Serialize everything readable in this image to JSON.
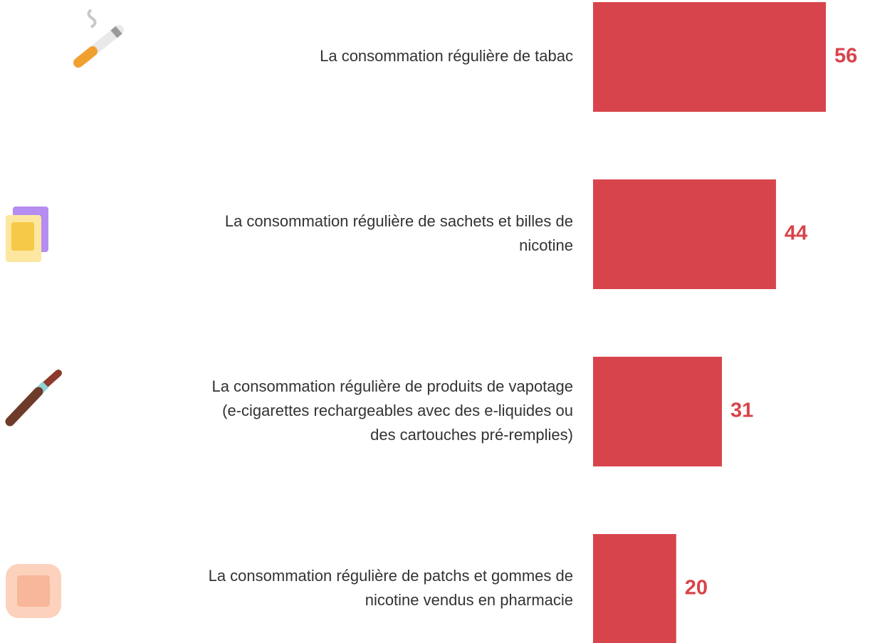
{
  "chart_data": {
    "type": "bar",
    "orientation": "horizontal",
    "color": "#d8444b",
    "categories": [
      [
        "La consommation régulière de tabac"
      ],
      [
        "La consommation régulière de sachets et billes de",
        "nicotine"
      ],
      [
        "La consommation régulière de produits de vapotage",
        "(e-cigarettes rechargeables avec des e-liquides ou",
        "des cartouches pré-remplies)"
      ],
      [
        "La consommation régulière de patchs et gommes de",
        "nicotine vendus en pharmacie"
      ]
    ],
    "values": [
      56,
      44,
      31,
      20
    ]
  }
}
